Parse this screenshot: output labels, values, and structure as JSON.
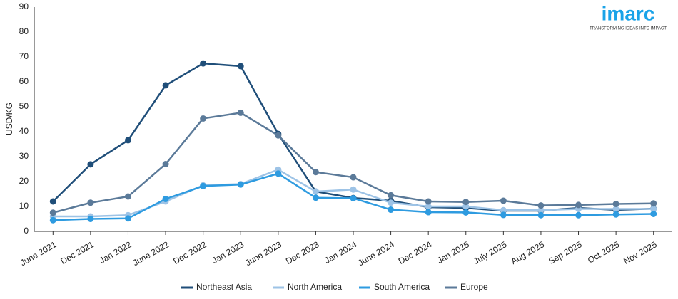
{
  "chart_data": {
    "type": "line",
    "y_label": "USD/KG",
    "logo": {
      "name": "imarc",
      "tagline": "TRANSFORMING IDEAS INTO IMPACT"
    },
    "categories": [
      "June 2021",
      "Dec 2021",
      "Jan 2022",
      "June 2022",
      "Dec 2022",
      "Jan 2023",
      "June 2023",
      "Dec 2023",
      "Jan 2024",
      "June 2024",
      "Dec 2024",
      "Jan 2025",
      "July 2025",
      "Aug 2025",
      "Sep 2025",
      "Oct 2025",
      "Nov 2025"
    ],
    "series": [
      {
        "name": "Northeast Asia",
        "color": "#1f4e79",
        "values": [
          12,
          26.9,
          36.6,
          58.6,
          67.4,
          66.3,
          39.1,
          16,
          13.4,
          12.3,
          9.7,
          9.4,
          8.3,
          8.3,
          9.4,
          8.6,
          9.1
        ]
      },
      {
        "name": "North America",
        "color": "#9dc3e6",
        "values": [
          6,
          6,
          6.5,
          12,
          18.5,
          19,
          24.8,
          16,
          16.8,
          11.5,
          10,
          10,
          8.5,
          8.5,
          9,
          9,
          9
        ]
      },
      {
        "name": "South America",
        "color": "#2e9be0",
        "values": [
          4.5,
          5,
          5.2,
          13,
          18.2,
          18.8,
          23.2,
          13.5,
          13.3,
          8.7,
          7.7,
          7.6,
          6.6,
          6.5,
          6.5,
          6.8,
          7
        ]
      },
      {
        "name": "Europe",
        "color": "#5b7a99",
        "values": [
          7.5,
          11.5,
          14,
          27,
          45.3,
          47.6,
          38.5,
          23.8,
          21.7,
          14.5,
          12,
          11.8,
          12.3,
          10.4,
          10.6,
          11,
          11.2
        ]
      }
    ],
    "ylim": [
      0,
      90
    ],
    "yticks": [
      0,
      10,
      20,
      30,
      40,
      50,
      60,
      70,
      80,
      90
    ],
    "grid": false,
    "legend": "bottom"
  }
}
